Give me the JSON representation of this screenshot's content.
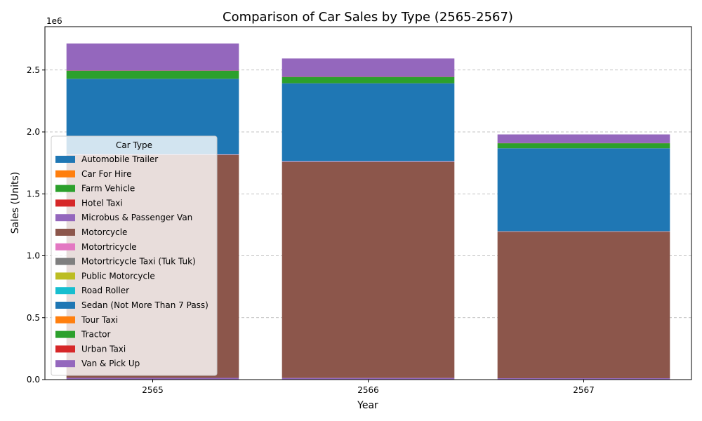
{
  "chart_data": {
    "type": "bar",
    "stacked": true,
    "title": "Comparison of Car Sales by Type (2565-2567)",
    "xlabel": "Year",
    "ylabel": "Sales (Units)",
    "scale_note": "1e6",
    "categories": [
      "2565",
      "2566",
      "2567"
    ],
    "ylim": [
      0,
      2850000
    ],
    "yticks": [
      0,
      500000,
      1000000,
      1500000,
      2000000,
      2500000
    ],
    "ytick_labels": [
      "0.0",
      "0.5",
      "1.0",
      "1.5",
      "2.0",
      "2.5"
    ],
    "grid": "y-dashed",
    "legend_title": "Car Type",
    "legend_placement": "center-left",
    "series": [
      {
        "name": "Automobile Trailer",
        "color": "#1f77b4",
        "values": [
          1000,
          1000,
          1000
        ]
      },
      {
        "name": "Car For Hire",
        "color": "#ff7f0e",
        "values": [
          500,
          500,
          500
        ]
      },
      {
        "name": "Farm Vehicle",
        "color": "#2ca02c",
        "values": [
          500,
          500,
          500
        ]
      },
      {
        "name": "Hotel Taxi",
        "color": "#d62728",
        "values": [
          200,
          200,
          200
        ]
      },
      {
        "name": "Microbus & Passenger Van",
        "color": "#9467bd",
        "values": [
          12000,
          11000,
          9000
        ]
      },
      {
        "name": "Motorcycle",
        "color": "#8c564b",
        "values": [
          1800000,
          1745000,
          1183000
        ]
      },
      {
        "name": "Motortricycle",
        "color": "#e377c2",
        "values": [
          3000,
          3000,
          2500
        ]
      },
      {
        "name": "Motortricycle Taxi (Tuk Tuk)",
        "color": "#7f7f7f",
        "values": [
          1000,
          1000,
          800
        ]
      },
      {
        "name": "Public Motorcycle",
        "color": "#bcbd22",
        "values": [
          500,
          500,
          500
        ]
      },
      {
        "name": "Road Roller",
        "color": "#17becf",
        "values": [
          300,
          300,
          300
        ]
      },
      {
        "name": "Sedan (Not More Than 7 Pass)",
        "color": "#1f77b4",
        "values": [
          610000,
          630000,
          670000
        ]
      },
      {
        "name": "Tour Taxi",
        "color": "#ff7f0e",
        "values": [
          500,
          500,
          500
        ]
      },
      {
        "name": "Tractor",
        "color": "#2ca02c",
        "values": [
          65000,
          50000,
          40000
        ]
      },
      {
        "name": "Urban Taxi",
        "color": "#d62728",
        "values": [
          1500,
          1500,
          1200
        ]
      },
      {
        "name": "Van & Pick Up",
        "color": "#9467bd",
        "values": [
          218000,
          148000,
          70000
        ]
      }
    ]
  }
}
